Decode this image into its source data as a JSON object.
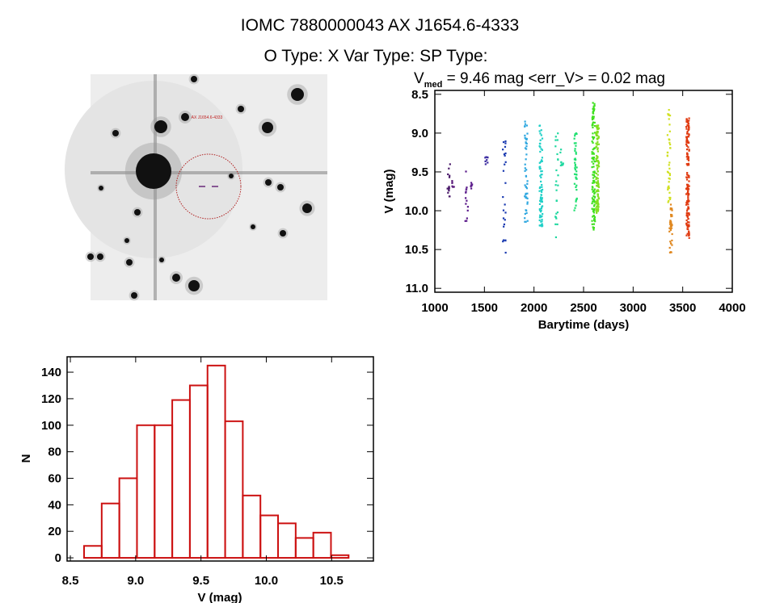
{
  "header": {
    "line1": "IOMC 7880000043    AX J1654.6-4333",
    "line2": "O Type: X  Var Type:   SP Type:"
  },
  "image_panel": {
    "source_label": "AX J1654.6-4333"
  },
  "chart_data": [
    {
      "type": "scatter",
      "title_prefix": "V",
      "title_sub": "med",
      "title_rest": " = 9.46 mag <err_V> = 0.02 mag",
      "xlabel": "Barytime (days)",
      "ylabel": "V (mag)",
      "xlim": [
        1000,
        4000
      ],
      "ylim": [
        8.45,
        11.05
      ],
      "y_inverted": true,
      "xticks": [
        1000,
        1500,
        2000,
        2500,
        3000,
        3500,
        4000
      ],
      "yticks": [
        "8.5",
        "9.0",
        "9.5",
        "10.0",
        "10.5",
        "11.0"
      ],
      "clusters": [
        {
          "x": 1140,
          "ymin": 9.4,
          "ymax": 9.85,
          "n": 14,
          "color": "#4a1a6a"
        },
        {
          "x": 1180,
          "ymin": 9.6,
          "ymax": 9.7,
          "n": 6,
          "color": "#5a1a7a"
        },
        {
          "x": 1320,
          "ymin": 9.45,
          "ymax": 10.2,
          "n": 14,
          "color": "#5a1a8a"
        },
        {
          "x": 1370,
          "ymin": 9.6,
          "ymax": 9.72,
          "n": 6,
          "color": "#5a1a8a"
        },
        {
          "x": 1520,
          "ymin": 9.3,
          "ymax": 9.4,
          "n": 8,
          "color": "#3a2aa0"
        },
        {
          "x": 1700,
          "ymin": 9.1,
          "ymax": 10.55,
          "n": 26,
          "color": "#1a3ab0"
        },
        {
          "x": 1920,
          "ymin": 8.8,
          "ymax": 10.15,
          "n": 50,
          "color": "#30a8e0"
        },
        {
          "x": 2070,
          "ymin": 8.9,
          "ymax": 10.25,
          "n": 80,
          "color": "#20d0c8"
        },
        {
          "x": 2230,
          "ymin": 9.0,
          "ymax": 10.35,
          "n": 24,
          "color": "#20d8a0"
        },
        {
          "x": 2280,
          "ymin": 9.2,
          "ymax": 9.45,
          "n": 10,
          "color": "#20d8a0"
        },
        {
          "x": 2420,
          "ymin": 8.9,
          "ymax": 10.0,
          "n": 40,
          "color": "#20e070"
        },
        {
          "x": 2600,
          "ymin": 8.6,
          "ymax": 10.25,
          "n": 120,
          "color": "#40e020"
        },
        {
          "x": 2640,
          "ymin": 8.9,
          "ymax": 10.05,
          "n": 120,
          "color": "#80e020"
        },
        {
          "x": 3360,
          "ymin": 8.7,
          "ymax": 9.9,
          "n": 40,
          "color": "#d0e020"
        },
        {
          "x": 3380,
          "ymin": 9.9,
          "ymax": 10.55,
          "n": 35,
          "color": "#e08820"
        },
        {
          "x": 3550,
          "ymin": 8.8,
          "ymax": 10.35,
          "n": 150,
          "color": "#e03a10"
        }
      ]
    },
    {
      "type": "bar",
      "subtype": "histogram",
      "xlabel": "V (mag)",
      "ylabel": "N",
      "xlim": [
        8.475,
        10.82
      ],
      "ylim": [
        -2.4,
        151.6
      ],
      "xticks": [
        "8.5",
        "9.0",
        "9.5",
        "10.0",
        "10.5"
      ],
      "yticks": [
        0,
        20,
        40,
        60,
        80,
        100,
        120,
        140
      ],
      "bin_start": 8.605,
      "bin_width": 0.135,
      "values": [
        9,
        41,
        60,
        100,
        100,
        119,
        130,
        145,
        103,
        47,
        32,
        26,
        15,
        19,
        2
      ],
      "color": "#cc1111"
    }
  ]
}
